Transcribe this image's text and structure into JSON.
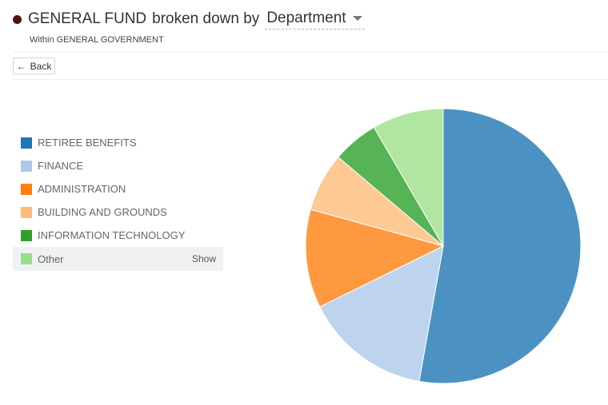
{
  "header": {
    "title": "GENERAL FUND",
    "broken_by": "broken down by",
    "dimension": "Department",
    "subtitle": "Within GENERAL GOVERNMENT"
  },
  "back_label": "Back",
  "legend": {
    "items": [
      {
        "label": "RETIREE BENEFITS",
        "color": "#1f77b4"
      },
      {
        "label": "FINANCE",
        "color": "#aec7e8"
      },
      {
        "label": "ADMINISTRATION",
        "color": "#ff7f0e"
      },
      {
        "label": "BUILDING AND GROUNDS",
        "color": "#ffbb78"
      },
      {
        "label": "INFORMATION TECHNOLOGY",
        "color": "#2ca02c"
      },
      {
        "label": "Other",
        "color": "#98df8a"
      }
    ],
    "show_label": "Show"
  },
  "chart_data": {
    "type": "pie",
    "title": "GENERAL FUND broken down by Department",
    "subtitle": "Within GENERAL GOVERNMENT",
    "categories": [
      "RETIREE BENEFITS",
      "FINANCE",
      "ADMINISTRATION",
      "BUILDING AND GROUNDS",
      "INFORMATION TECHNOLOGY",
      "Other"
    ],
    "values": [
      52.8,
      14.9,
      11.6,
      6.9,
      5.4,
      8.4
    ],
    "colors": [
      "#4b92c3",
      "#bed3ed",
      "#ff993f",
      "#ffc993",
      "#56b356",
      "#b0e6a1"
    ],
    "legend_position": "left"
  }
}
